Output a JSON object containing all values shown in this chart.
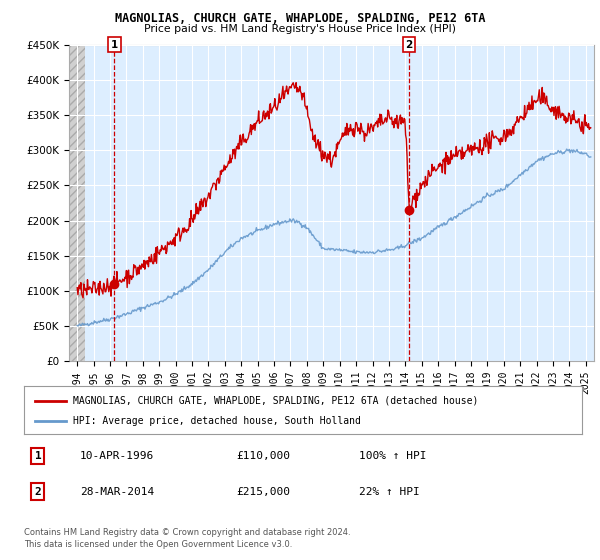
{
  "title": "MAGNOLIAS, CHURCH GATE, WHAPLODE, SPALDING, PE12 6TA",
  "subtitle": "Price paid vs. HM Land Registry's House Price Index (HPI)",
  "ylim": [
    0,
    450000
  ],
  "yticks": [
    0,
    50000,
    100000,
    150000,
    200000,
    250000,
    300000,
    350000,
    400000,
    450000
  ],
  "xlim_start": 1993.5,
  "xlim_end": 2025.5,
  "sale1_x": 1996.27,
  "sale1_y": 110000,
  "sale2_x": 2014.23,
  "sale2_y": 215000,
  "legend_line1": "MAGNOLIAS, CHURCH GATE, WHAPLODE, SPALDING, PE12 6TA (detached house)",
  "legend_line2": "HPI: Average price, detached house, South Holland",
  "sale1_date": "10-APR-1996",
  "sale1_price": "£110,000",
  "sale1_hpi": "100% ↑ HPI",
  "sale2_date": "28-MAR-2014",
  "sale2_price": "£215,000",
  "sale2_hpi": "22% ↑ HPI",
  "footer1": "Contains HM Land Registry data © Crown copyright and database right 2024.",
  "footer2": "This data is licensed under the Open Government Licence v3.0.",
  "price_line_color": "#cc0000",
  "hpi_line_color": "#6699cc",
  "chart_bg_color": "#ddeeff",
  "hatch_color": "#c8c8c8",
  "vline_color": "#cc0000",
  "grid_color": "#ffffff"
}
